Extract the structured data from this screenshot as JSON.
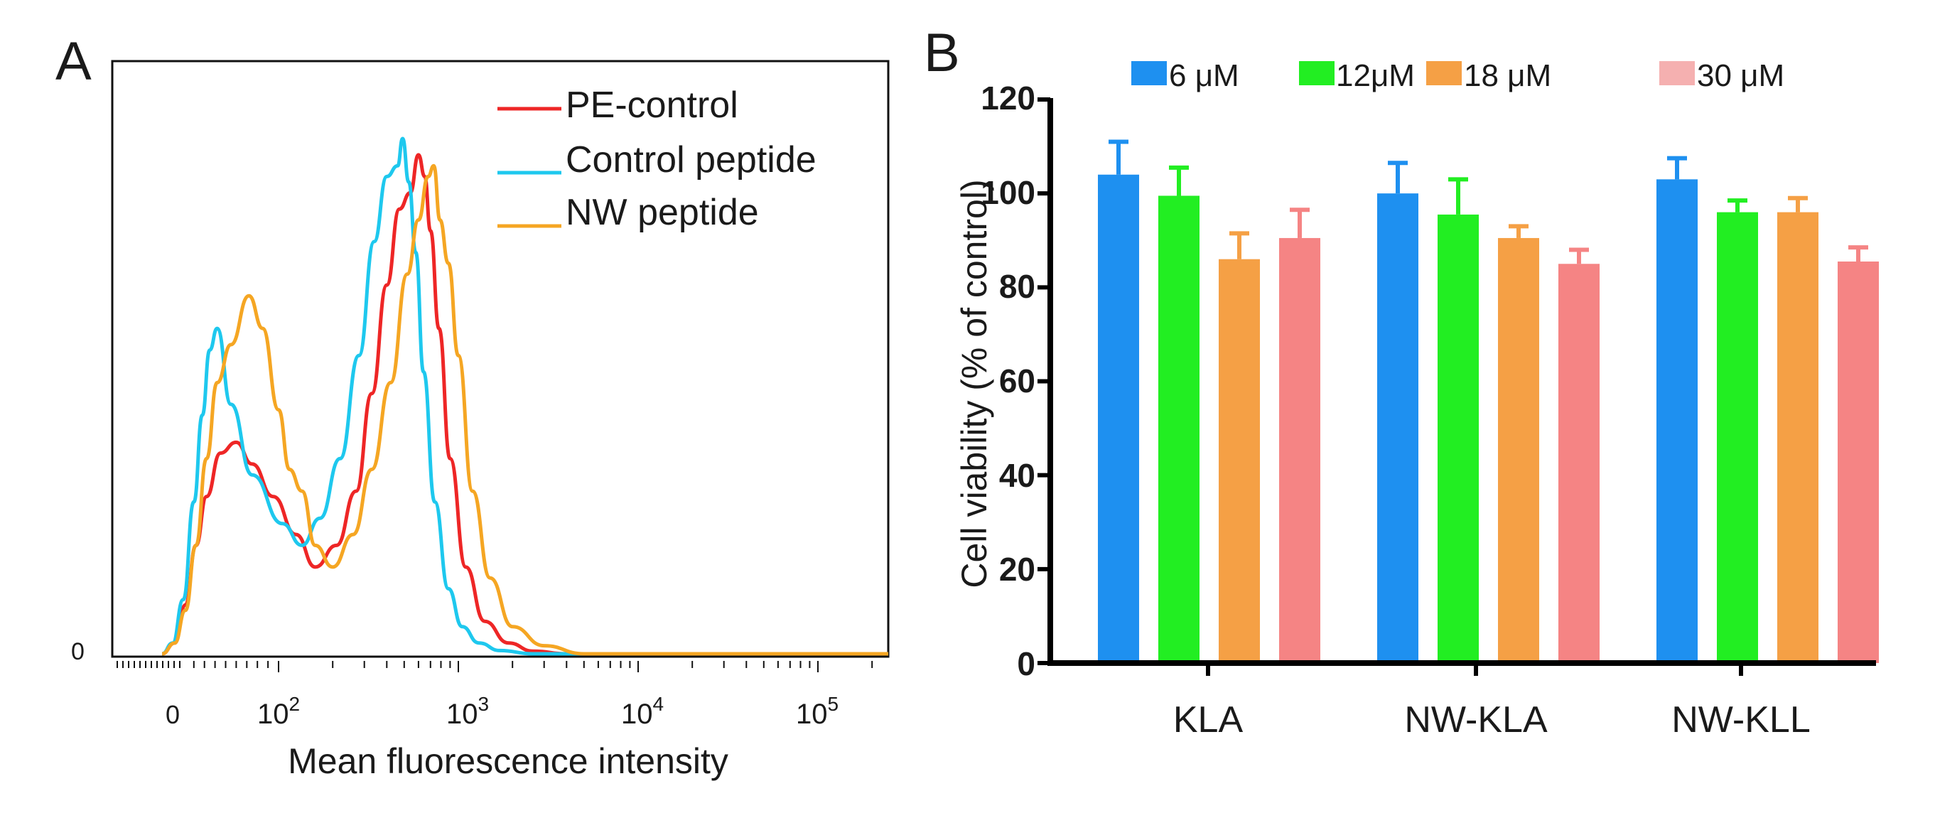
{
  "chart_data": [
    {
      "panel": "A",
      "type": "line",
      "title": "",
      "xlabel": "Mean fluorescence intensity",
      "ylabel": "",
      "x_scale": "biexponential (log above ~10^2)",
      "xlim": [
        -10,
        250000
      ],
      "ylim": [
        0,
        1.0
      ],
      "x_ticks": [
        {
          "label": "0"
        },
        {
          "label": "10",
          "exp": "2"
        },
        {
          "label": "10",
          "exp": "3"
        },
        {
          "label": "10",
          "exp": "4"
        },
        {
          "label": "10",
          "exp": "5"
        }
      ],
      "y_ticks": [
        "0"
      ],
      "legend": [
        {
          "name": "PE-control",
          "color": "#ee2626"
        },
        {
          "name": "Control peptide",
          "color": "#1ec8ee"
        },
        {
          "name": "NW peptide",
          "color": "#f5a623"
        }
      ],
      "series": [
        {
          "name": "PE-control",
          "color": "#ee2626",
          "x": [
            -10,
            2,
            12,
            22,
            32,
            45,
            60,
            75,
            95,
            125,
            160,
            210,
            270,
            330,
            400,
            470,
            540,
            600,
            650,
            700,
            780,
            900,
            1100,
            1400,
            1900,
            2600,
            4000,
            20000,
            250000
          ],
          "y": [
            0.0,
            0.02,
            0.09,
            0.2,
            0.29,
            0.37,
            0.39,
            0.35,
            0.29,
            0.22,
            0.16,
            0.2,
            0.3,
            0.48,
            0.68,
            0.82,
            0.85,
            0.92,
            0.88,
            0.78,
            0.6,
            0.36,
            0.16,
            0.06,
            0.02,
            0.005,
            0.0,
            0.0,
            0.0
          ]
        },
        {
          "name": "Control peptide",
          "color": "#1ec8ee",
          "x": [
            -10,
            0,
            10,
            20,
            28,
            35,
            42,
            55,
            75,
            105,
            135,
            170,
            220,
            280,
            340,
            400,
            460,
            490,
            530,
            580,
            640,
            740,
            880,
            1050,
            1300,
            1700,
            2600,
            20000,
            250000
          ],
          "y": [
            0.0,
            0.02,
            0.1,
            0.28,
            0.44,
            0.56,
            0.6,
            0.46,
            0.33,
            0.24,
            0.2,
            0.25,
            0.36,
            0.55,
            0.76,
            0.88,
            0.9,
            0.95,
            0.87,
            0.74,
            0.52,
            0.28,
            0.12,
            0.05,
            0.02,
            0.006,
            0.0,
            0.0,
            0.0
          ]
        },
        {
          "name": "NW peptide",
          "color": "#f5a623",
          "x": [
            -10,
            2,
            12,
            22,
            32,
            42,
            55,
            72,
            85,
            100,
            115,
            135,
            160,
            200,
            260,
            330,
            420,
            520,
            600,
            680,
            730,
            790,
            880,
            1000,
            1200,
            1500,
            2000,
            3000,
            5000,
            250000
          ],
          "y": [
            0.0,
            0.02,
            0.08,
            0.2,
            0.36,
            0.5,
            0.57,
            0.66,
            0.6,
            0.45,
            0.34,
            0.3,
            0.2,
            0.16,
            0.22,
            0.34,
            0.5,
            0.7,
            0.8,
            0.88,
            0.9,
            0.8,
            0.72,
            0.55,
            0.3,
            0.14,
            0.05,
            0.015,
            0.0,
            0.0
          ]
        }
      ]
    },
    {
      "panel": "B",
      "type": "bar",
      "title": "",
      "xlabel": "",
      "ylabel": "Cell viability (% of control)",
      "ylim": [
        0,
        120
      ],
      "y_ticks": [
        0,
        20,
        40,
        60,
        80,
        100,
        120
      ],
      "categories": [
        "KLA",
        "NW-KLA",
        "NW-KLL"
      ],
      "series": [
        {
          "name": "6 μM",
          "color": "#1e90f0",
          "values": [
            104,
            100,
            103
          ],
          "errors": [
            7,
            6.5,
            4.5
          ]
        },
        {
          "name": "12μM",
          "color": "#22ee22",
          "values": [
            99.5,
            95.5,
            96
          ],
          "errors": [
            6,
            7.5,
            2.5
          ]
        },
        {
          "name": "18 μM",
          "color": "#f5a045",
          "values": [
            86,
            90.5,
            96
          ],
          "errors": [
            5.5,
            2.5,
            3
          ]
        },
        {
          "name": "30 μM",
          "color": "#f58484",
          "values": [
            90.5,
            85,
            85.5
          ],
          "errors": [
            6,
            3,
            3
          ]
        }
      ]
    }
  ],
  "labels": {
    "panel_a": "A",
    "panel_b": "B"
  },
  "legend_b_swatch_colors": [
    "#1e90f0",
    "#22ee22",
    "#f5a045",
    "#f5b0b0"
  ]
}
